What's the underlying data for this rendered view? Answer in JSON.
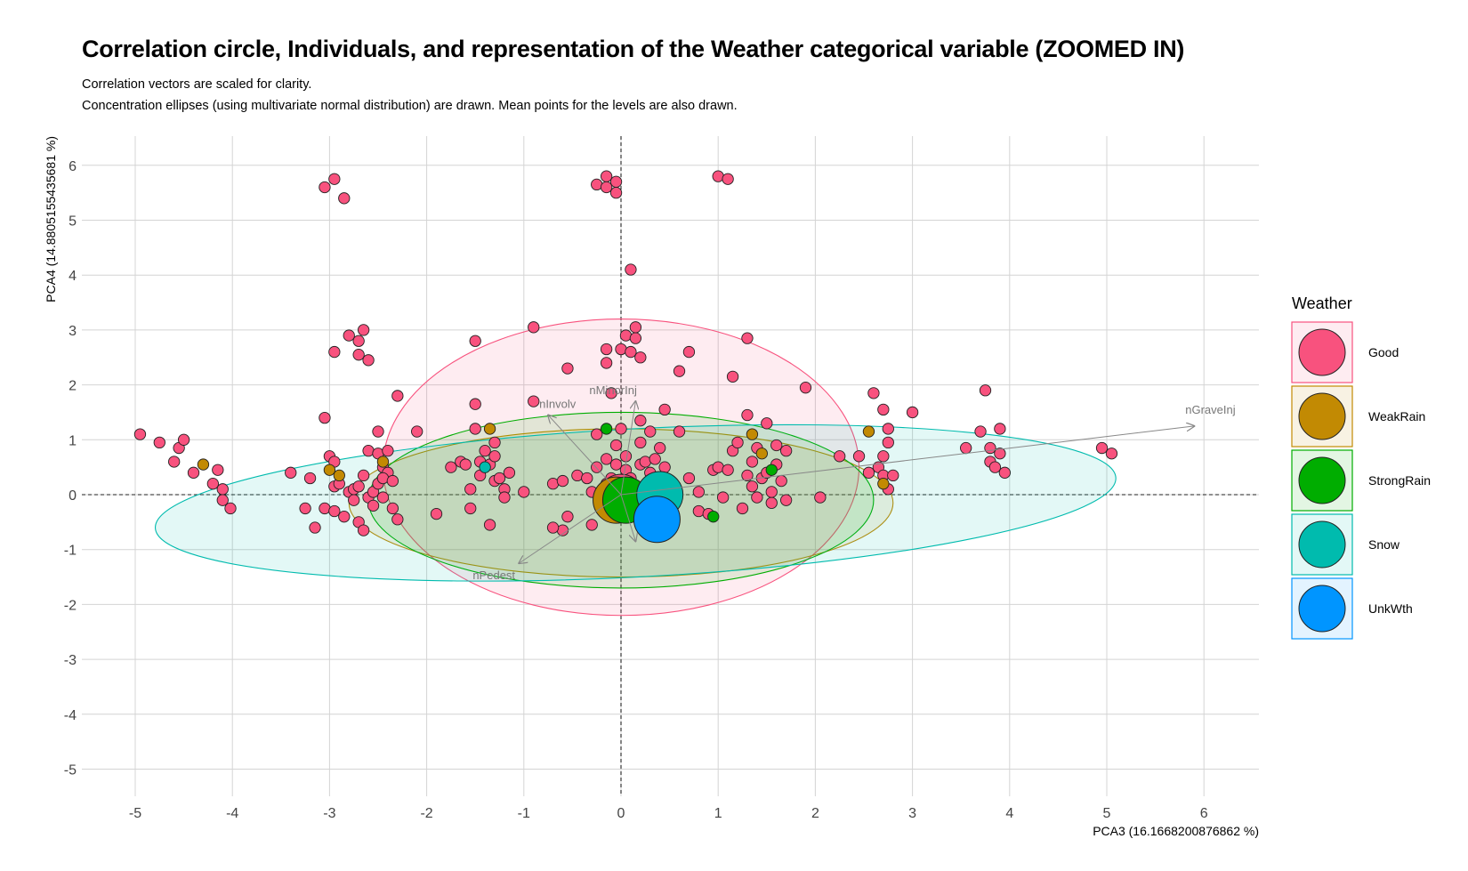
{
  "title": "Correlation circle, Individuals, and representation of the Weather categorical variable (ZOOMED IN)",
  "subtitle_lines": [
    "Correlation vectors are scaled for clarity.",
    "Concentration ellipses (using multivariate normal distribution) are drawn. Mean points for the levels are also drawn."
  ],
  "chart_data": {
    "type": "scatter",
    "xlabel": "PCA3 (16.1668200876862 %)",
    "ylabel": "PCA4 (14.8805155435681 %)",
    "xlim": [
      -5.5,
      6.6
    ],
    "ylim": [
      -5.5,
      6.6
    ],
    "xticks": [
      -5,
      -4,
      -3,
      -2,
      -1,
      0,
      1,
      2,
      3,
      4,
      5,
      6
    ],
    "yticks": [
      -5,
      -4,
      -3,
      -2,
      -1,
      0,
      1,
      2,
      3,
      4,
      5,
      6
    ],
    "grid": true,
    "reference_lines": {
      "x": 0,
      "y": 0,
      "style": "dashed"
    },
    "legend": {
      "title": "Weather",
      "placement": "right",
      "levels": [
        {
          "name": "Good",
          "color": "#F8527E"
        },
        {
          "name": "WeakRain",
          "color": "#C28A03"
        },
        {
          "name": "StrongRain",
          "color": "#00AD00"
        },
        {
          "name": "Snow",
          "color": "#00BBAE"
        },
        {
          "name": "UnkWth",
          "color": "#0095FF"
        }
      ]
    },
    "vectors": [
      {
        "label": "nGraveInj",
        "x": 5.9,
        "y": 1.25
      },
      {
        "label": "nInvolv",
        "x": -0.75,
        "y": 1.45
      },
      {
        "label": "nMinorInj",
        "x": 0.15,
        "y": 1.7
      },
      {
        "label": "nPedest",
        "x": -1.05,
        "y": -1.25
      },
      {
        "label": "",
        "x": 0.15,
        "y": -0.85
      }
    ],
    "ellipses": [
      {
        "level": "Good",
        "cx": 0.0,
        "cy": 0.5,
        "rx": 2.45,
        "ry": 2.7,
        "angle": 0
      },
      {
        "level": "WeakRain",
        "cx": 0.0,
        "cy": -0.15,
        "rx": 2.8,
        "ry": 1.35,
        "angle": 0
      },
      {
        "level": "StrongRain",
        "cx": 0.0,
        "cy": -0.1,
        "rx": 2.6,
        "ry": 1.6,
        "angle": 0
      },
      {
        "level": "Snow",
        "cx": 0.15,
        "cy": -0.15,
        "rx": 4.95,
        "ry": 1.35,
        "angle": 3
      }
    ],
    "means": [
      {
        "level": "Good",
        "x": 0.0,
        "y": -0.05,
        "r": 26
      },
      {
        "level": "WeakRain",
        "x": -0.05,
        "y": -0.1,
        "r": 26
      },
      {
        "level": "StrongRain",
        "x": 0.05,
        "y": -0.1,
        "r": 26
      },
      {
        "level": "Snow",
        "x": 0.4,
        "y": 0.0,
        "r": 26
      },
      {
        "level": "UnkWth",
        "x": 0.37,
        "y": -0.45,
        "r": 26
      }
    ],
    "points": {
      "Good": [
        [
          -4.95,
          1.1
        ],
        [
          -4.75,
          0.95
        ],
        [
          -4.55,
          0.85
        ],
        [
          -4.5,
          1.0
        ],
        [
          -4.6,
          0.6
        ],
        [
          -4.4,
          0.4
        ],
        [
          -4.15,
          0.45
        ],
        [
          -4.2,
          0.2
        ],
        [
          -4.1,
          0.1
        ],
        [
          -4.1,
          -0.1
        ],
        [
          -4.02,
          -0.25
        ],
        [
          -3.4,
          0.4
        ],
        [
          -3.2,
          0.3
        ],
        [
          -3.25,
          -0.25
        ],
        [
          -3.15,
          -0.6
        ],
        [
          -3.05,
          1.4
        ],
        [
          -3.05,
          -0.25
        ],
        [
          -3.0,
          0.7
        ],
        [
          -2.95,
          0.6
        ],
        [
          -2.95,
          0.15
        ],
        [
          -2.9,
          0.2
        ],
        [
          -2.95,
          -0.3
        ],
        [
          -2.85,
          -0.4
        ],
        [
          -2.8,
          0.05
        ],
        [
          -2.75,
          0.1
        ],
        [
          -2.75,
          -0.1
        ],
        [
          -2.7,
          -0.5
        ],
        [
          -2.65,
          -0.65
        ],
        [
          -2.7,
          0.15
        ],
        [
          -2.65,
          0.35
        ],
        [
          -2.6,
          -0.05
        ],
        [
          -2.55,
          0.05
        ],
        [
          -2.55,
          -0.2
        ],
        [
          -2.5,
          0.2
        ],
        [
          -2.6,
          0.8
        ],
        [
          -2.5,
          0.75
        ],
        [
          -2.45,
          0.5
        ],
        [
          -2.4,
          0.4
        ],
        [
          -2.45,
          0.3
        ],
        [
          -2.45,
          -0.05
        ],
        [
          -2.35,
          -0.25
        ],
        [
          -2.4,
          0.8
        ],
        [
          -2.35,
          0.25
        ],
        [
          -2.3,
          -0.45
        ],
        [
          -2.1,
          1.15
        ],
        [
          -2.5,
          1.15
        ],
        [
          -2.3,
          1.8
        ],
        [
          -2.6,
          2.45
        ],
        [
          -2.7,
          2.55
        ],
        [
          -2.7,
          2.8
        ],
        [
          -2.65,
          3.0
        ],
        [
          -2.8,
          2.9
        ],
        [
          -2.95,
          2.6
        ],
        [
          -3.05,
          5.6
        ],
        [
          -2.95,
          5.75
        ],
        [
          -2.85,
          5.4
        ],
        [
          -1.9,
          -0.35
        ],
        [
          -1.75,
          0.5
        ],
        [
          -1.65,
          0.6
        ],
        [
          -1.6,
          0.55
        ],
        [
          -1.55,
          0.1
        ],
        [
          -1.55,
          -0.25
        ],
        [
          -1.5,
          1.2
        ],
        [
          -1.45,
          0.6
        ],
        [
          -1.45,
          0.35
        ],
        [
          -1.4,
          0.8
        ],
        [
          -1.35,
          0.55
        ],
        [
          -1.3,
          0.7
        ],
        [
          -1.3,
          0.25
        ],
        [
          -1.25,
          0.3
        ],
        [
          -1.2,
          0.1
        ],
        [
          -1.15,
          0.4
        ],
        [
          -1.2,
          -0.05
        ],
        [
          -1.35,
          -0.55
        ],
        [
          -1.3,
          0.95
        ],
        [
          -1.0,
          0.05
        ],
        [
          -0.9,
          1.7
        ],
        [
          -0.7,
          0.2
        ],
        [
          -0.6,
          0.25
        ],
        [
          -0.55,
          -0.4
        ],
        [
          -0.45,
          0.35
        ],
        [
          -0.35,
          0.3
        ],
        [
          -0.3,
          0.05
        ],
        [
          -0.3,
          -0.55
        ],
        [
          -0.25,
          0.5
        ],
        [
          -0.25,
          1.1
        ],
        [
          -0.15,
          0.65
        ],
        [
          -0.15,
          0.2
        ],
        [
          -0.1,
          0.3
        ],
        [
          -0.05,
          0.55
        ],
        [
          -0.05,
          0.9
        ],
        [
          -0.05,
          -0.35
        ],
        [
          0.0,
          1.2
        ],
        [
          0.05,
          0.7
        ],
        [
          0.05,
          0.45
        ],
        [
          0.1,
          0.3
        ],
        [
          0.15,
          0.15
        ],
        [
          0.2,
          0.55
        ],
        [
          0.2,
          0.95
        ],
        [
          0.25,
          0.6
        ],
        [
          0.3,
          0.4
        ],
        [
          0.35,
          0.65
        ],
        [
          0.4,
          0.85
        ],
        [
          0.4,
          0.25
        ],
        [
          0.45,
          0.5
        ],
        [
          0.2,
          1.35
        ],
        [
          0.3,
          1.15
        ],
        [
          0.6,
          1.15
        ],
        [
          0.45,
          1.55
        ],
        [
          -0.1,
          1.85
        ],
        [
          -0.6,
          -0.65
        ],
        [
          -0.7,
          -0.6
        ],
        [
          -0.55,
          2.3
        ],
        [
          -0.9,
          3.05
        ],
        [
          -1.5,
          2.8
        ],
        [
          -1.5,
          1.65
        ],
        [
          -0.15,
          2.4
        ],
        [
          -0.15,
          2.65
        ],
        [
          0.0,
          2.65
        ],
        [
          0.05,
          2.9
        ],
        [
          0.1,
          2.6
        ],
        [
          0.15,
          2.85
        ],
        [
          0.15,
          3.05
        ],
        [
          0.2,
          2.5
        ],
        [
          0.1,
          4.1
        ],
        [
          -0.25,
          5.65
        ],
        [
          -0.15,
          5.8
        ],
        [
          -0.15,
          5.6
        ],
        [
          -0.05,
          5.5
        ],
        [
          -0.05,
          5.7
        ],
        [
          1.0,
          5.8
        ],
        [
          1.1,
          5.75
        ],
        [
          0.6,
          2.25
        ],
        [
          0.7,
          2.6
        ],
        [
          1.15,
          2.15
        ],
        [
          1.3,
          2.85
        ],
        [
          1.9,
          1.95
        ],
        [
          0.7,
          0.3
        ],
        [
          0.8,
          0.05
        ],
        [
          0.8,
          -0.3
        ],
        [
          0.9,
          -0.35
        ],
        [
          0.95,
          0.45
        ],
        [
          1.0,
          0.5
        ],
        [
          1.05,
          -0.05
        ],
        [
          1.1,
          0.45
        ],
        [
          1.15,
          0.8
        ],
        [
          1.2,
          0.95
        ],
        [
          1.25,
          -0.25
        ],
        [
          1.3,
          0.35
        ],
        [
          1.3,
          1.45
        ],
        [
          1.35,
          0.15
        ],
        [
          1.35,
          0.6
        ],
        [
          1.4,
          0.85
        ],
        [
          1.4,
          -0.05
        ],
        [
          1.45,
          0.3
        ],
        [
          1.5,
          0.4
        ],
        [
          1.5,
          1.3
        ],
        [
          1.55,
          -0.15
        ],
        [
          1.55,
          0.05
        ],
        [
          1.6,
          0.55
        ],
        [
          1.6,
          0.9
        ],
        [
          1.65,
          0.25
        ],
        [
          1.7,
          0.8
        ],
        [
          1.7,
          -0.1
        ],
        [
          2.05,
          -0.05
        ],
        [
          2.25,
          0.7
        ],
        [
          2.45,
          0.7
        ],
        [
          2.55,
          0.4
        ],
        [
          2.6,
          1.85
        ],
        [
          2.65,
          0.5
        ],
        [
          2.7,
          0.35
        ],
        [
          2.7,
          0.7
        ],
        [
          2.75,
          0.95
        ],
        [
          2.7,
          1.55
        ],
        [
          2.75,
          1.2
        ],
        [
          2.75,
          0.1
        ],
        [
          2.8,
          0.35
        ],
        [
          3.0,
          1.5
        ],
        [
          3.55,
          0.85
        ],
        [
          3.7,
          1.15
        ],
        [
          3.75,
          1.9
        ],
        [
          3.8,
          0.6
        ],
        [
          3.8,
          0.85
        ],
        [
          3.85,
          0.5
        ],
        [
          3.9,
          0.75
        ],
        [
          3.95,
          0.4
        ],
        [
          3.9,
          1.2
        ],
        [
          4.95,
          0.85
        ],
        [
          5.05,
          0.75
        ]
      ],
      "WeakRain": [
        [
          -4.3,
          0.55
        ],
        [
          -3.0,
          0.45
        ],
        [
          -2.9,
          0.35
        ],
        [
          -2.45,
          0.6
        ],
        [
          -1.35,
          1.2
        ],
        [
          1.35,
          1.1
        ],
        [
          1.45,
          0.75
        ],
        [
          2.55,
          1.15
        ],
        [
          2.7,
          0.2
        ]
      ],
      "StrongRain": [
        [
          -0.15,
          1.2
        ],
        [
          0.95,
          -0.4
        ],
        [
          1.55,
          0.45
        ]
      ],
      "Snow": [
        [
          -1.4,
          0.5
        ]
      ]
    }
  }
}
